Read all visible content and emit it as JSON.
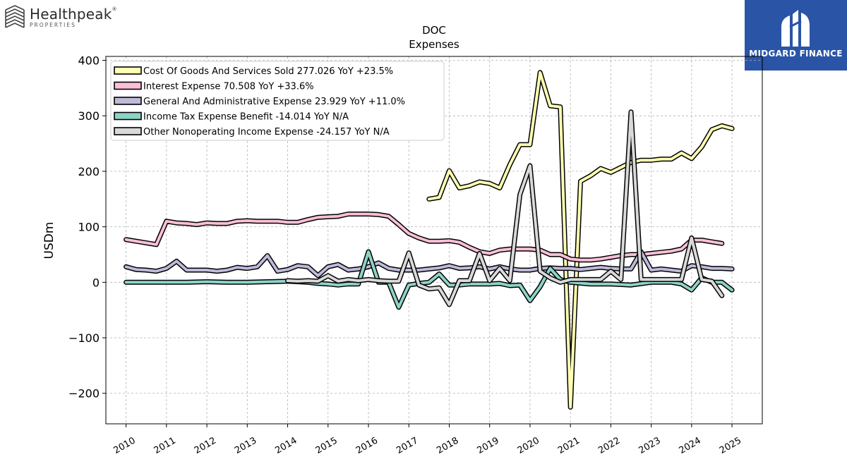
{
  "brand": {
    "name": "Healthpeak",
    "sub": "PROPERTIES",
    "mark": "®"
  },
  "badge": {
    "text": "MIDGARD FINANCE"
  },
  "chart_data": {
    "type": "line",
    "title": "DOC",
    "subtitle": "Expenses",
    "ylabel": "USDm",
    "xlabel": "",
    "ylim": [
      -255,
      407
    ],
    "xlim": [
      2009.5,
      2025.75
    ],
    "yticks": [
      -200,
      -100,
      0,
      100,
      200,
      300,
      400
    ],
    "ytick_labels": [
      "−200",
      "−100",
      "0",
      "100",
      "200",
      "300",
      "400"
    ],
    "xticks": [
      2010,
      2011,
      2012,
      2013,
      2014,
      2015,
      2016,
      2017,
      2018,
      2019,
      2020,
      2021,
      2022,
      2023,
      2024,
      2025
    ],
    "grid": true,
    "legend_position": "top-left",
    "series": [
      {
        "name": "Cost Of Goods And Services Sold",
        "legend_label": "Cost Of Goods And Services Sold  277.026 YoY +23.5%",
        "color": "#ffffb3",
        "points": [
          [
            2017.5,
            150
          ],
          [
            2017.75,
            153
          ],
          [
            2018.0,
            201
          ],
          [
            2018.25,
            170
          ],
          [
            2018.5,
            174
          ],
          [
            2018.75,
            181
          ],
          [
            2019.0,
            178
          ],
          [
            2019.25,
            170
          ],
          [
            2019.5,
            212
          ],
          [
            2019.75,
            248
          ],
          [
            2020.0,
            248
          ],
          [
            2020.25,
            378
          ],
          [
            2020.5,
            318
          ],
          [
            2020.75,
            316
          ],
          [
            2021.0,
            -225
          ],
          [
            2021.25,
            182
          ],
          [
            2021.5,
            192
          ],
          [
            2021.75,
            205
          ],
          [
            2022.0,
            198
          ],
          [
            2022.25,
            207
          ],
          [
            2022.5,
            216
          ],
          [
            2022.75,
            220
          ],
          [
            2023.0,
            220
          ],
          [
            2023.25,
            222
          ],
          [
            2023.5,
            222
          ],
          [
            2023.75,
            233
          ],
          [
            2024.0,
            223
          ],
          [
            2024.25,
            244
          ],
          [
            2024.5,
            275
          ],
          [
            2024.75,
            282
          ],
          [
            2025.0,
            277
          ]
        ]
      },
      {
        "name": "Interest Expense",
        "legend_label": "Interest Expense  70.508 YoY +33.6%",
        "color": "#fbbfd8",
        "points": [
          [
            2010.0,
            77
          ],
          [
            2010.25,
            74
          ],
          [
            2010.5,
            71
          ],
          [
            2010.75,
            68
          ],
          [
            2011.0,
            110
          ],
          [
            2011.25,
            107
          ],
          [
            2011.5,
            106
          ],
          [
            2011.75,
            104
          ],
          [
            2012.0,
            107
          ],
          [
            2012.25,
            106
          ],
          [
            2012.5,
            106
          ],
          [
            2012.75,
            110
          ],
          [
            2013.0,
            111
          ],
          [
            2013.25,
            110
          ],
          [
            2013.5,
            110
          ],
          [
            2013.75,
            110
          ],
          [
            2014.0,
            108
          ],
          [
            2014.25,
            108
          ],
          [
            2014.5,
            113
          ],
          [
            2014.75,
            117
          ],
          [
            2015.0,
            118
          ],
          [
            2015.25,
            119
          ],
          [
            2015.5,
            123
          ],
          [
            2015.75,
            123
          ],
          [
            2016.0,
            123
          ],
          [
            2016.25,
            122
          ],
          [
            2016.5,
            119
          ],
          [
            2016.75,
            104
          ],
          [
            2017.0,
            88
          ],
          [
            2017.25,
            80
          ],
          [
            2017.5,
            74
          ],
          [
            2017.75,
            74
          ],
          [
            2018.0,
            75
          ],
          [
            2018.25,
            72
          ],
          [
            2018.5,
            63
          ],
          [
            2018.75,
            55
          ],
          [
            2019.0,
            52
          ],
          [
            2019.25,
            58
          ],
          [
            2019.5,
            60
          ],
          [
            2019.75,
            60
          ],
          [
            2020.0,
            60
          ],
          [
            2020.25,
            58
          ],
          [
            2020.5,
            50
          ],
          [
            2020.75,
            50
          ],
          [
            2021.0,
            42
          ],
          [
            2021.25,
            40
          ],
          [
            2021.5,
            40
          ],
          [
            2021.75,
            42
          ],
          [
            2022.0,
            45
          ],
          [
            2022.25,
            48
          ],
          [
            2022.5,
            50
          ],
          [
            2022.75,
            50
          ],
          [
            2023.0,
            52
          ],
          [
            2023.25,
            54
          ],
          [
            2023.5,
            56
          ],
          [
            2023.75,
            60
          ],
          [
            2024.0,
            76
          ],
          [
            2024.25,
            76
          ],
          [
            2024.5,
            73
          ],
          [
            2024.75,
            70
          ]
        ]
      },
      {
        "name": "General And Administrative Expense",
        "legend_label": "General And Administrative Expense  23.929 YoY +11.0%",
        "color": "#bebada",
        "points": [
          [
            2010.0,
            28
          ],
          [
            2010.25,
            23
          ],
          [
            2010.5,
            22
          ],
          [
            2010.75,
            20
          ],
          [
            2011.0,
            25
          ],
          [
            2011.25,
            38
          ],
          [
            2011.5,
            22
          ],
          [
            2011.75,
            22
          ],
          [
            2012.0,
            22
          ],
          [
            2012.25,
            20
          ],
          [
            2012.5,
            22
          ],
          [
            2012.75,
            27
          ],
          [
            2013.0,
            25
          ],
          [
            2013.25,
            28
          ],
          [
            2013.5,
            48
          ],
          [
            2013.75,
            20
          ],
          [
            2014.0,
            23
          ],
          [
            2014.25,
            30
          ],
          [
            2014.5,
            28
          ],
          [
            2014.75,
            12
          ],
          [
            2015.0,
            28
          ],
          [
            2015.25,
            32
          ],
          [
            2015.5,
            22
          ],
          [
            2015.75,
            24
          ],
          [
            2016.0,
            28
          ],
          [
            2016.25,
            35
          ],
          [
            2016.5,
            25
          ],
          [
            2016.75,
            22
          ],
          [
            2017.0,
            22
          ],
          [
            2017.25,
            22
          ],
          [
            2017.5,
            24
          ],
          [
            2017.75,
            26
          ],
          [
            2018.0,
            30
          ],
          [
            2018.25,
            25
          ],
          [
            2018.5,
            26
          ],
          [
            2018.75,
            28
          ],
          [
            2019.0,
            24
          ],
          [
            2019.25,
            28
          ],
          [
            2019.5,
            24
          ],
          [
            2019.75,
            22
          ],
          [
            2020.0,
            22
          ],
          [
            2020.25,
            25
          ],
          [
            2020.5,
            26
          ],
          [
            2020.75,
            25
          ],
          [
            2021.0,
            25
          ],
          [
            2021.25,
            23
          ],
          [
            2021.5,
            25
          ],
          [
            2021.75,
            27
          ],
          [
            2022.0,
            25
          ],
          [
            2022.25,
            24
          ],
          [
            2022.5,
            24
          ],
          [
            2022.75,
            55
          ],
          [
            2023.0,
            22
          ],
          [
            2023.25,
            24
          ],
          [
            2023.5,
            22
          ],
          [
            2023.75,
            20
          ],
          [
            2024.0,
            30
          ],
          [
            2024.25,
            28
          ],
          [
            2024.5,
            25
          ],
          [
            2024.75,
            25
          ],
          [
            2025.0,
            24
          ]
        ]
      },
      {
        "name": "Income Tax Expense Benefit",
        "legend_label": "Income Tax Expense Benefit  -14.014 YoY N/A",
        "color": "#8dd3c7",
        "points": [
          [
            2010.0,
            0
          ],
          [
            2010.5,
            0
          ],
          [
            2011.0,
            0
          ],
          [
            2011.5,
            0
          ],
          [
            2012.0,
            1
          ],
          [
            2012.5,
            0
          ],
          [
            2013.0,
            0
          ],
          [
            2013.5,
            1
          ],
          [
            2014.0,
            2
          ],
          [
            2014.5,
            0
          ],
          [
            2014.75,
            -2
          ],
          [
            2015.0,
            -3
          ],
          [
            2015.25,
            -5
          ],
          [
            2015.5,
            -3
          ],
          [
            2015.75,
            -3
          ],
          [
            2016.0,
            55
          ],
          [
            2016.25,
            0
          ],
          [
            2016.5,
            0
          ],
          [
            2016.75,
            -45
          ],
          [
            2017.0,
            -5
          ],
          [
            2017.25,
            -2
          ],
          [
            2017.5,
            0
          ],
          [
            2017.75,
            15
          ],
          [
            2018.0,
            -5
          ],
          [
            2018.25,
            -5
          ],
          [
            2018.5,
            -3
          ],
          [
            2018.75,
            -3
          ],
          [
            2019.0,
            -3
          ],
          [
            2019.25,
            -2
          ],
          [
            2019.5,
            -6
          ],
          [
            2019.75,
            -5
          ],
          [
            2020.0,
            -33
          ],
          [
            2020.25,
            -8
          ],
          [
            2020.5,
            25
          ],
          [
            2020.75,
            5
          ],
          [
            2021.0,
            0
          ],
          [
            2021.5,
            -3
          ],
          [
            2022.0,
            -3
          ],
          [
            2022.5,
            -5
          ],
          [
            2023.0,
            0
          ],
          [
            2023.5,
            0
          ],
          [
            2023.75,
            -3
          ],
          [
            2024.0,
            -14
          ],
          [
            2024.25,
            8
          ],
          [
            2024.5,
            0
          ],
          [
            2024.75,
            0
          ],
          [
            2025.0,
            -14
          ]
        ]
      },
      {
        "name": "Other Nonoperating Income Expense",
        "legend_label": "Other Nonoperating Income Expense  -24.157 YoY N/A",
        "color": "#d9d9d9",
        "points": [
          [
            2014.0,
            3
          ],
          [
            2014.25,
            2
          ],
          [
            2014.5,
            3
          ],
          [
            2014.75,
            2
          ],
          [
            2015.0,
            12
          ],
          [
            2015.25,
            2
          ],
          [
            2015.5,
            5
          ],
          [
            2015.75,
            3
          ],
          [
            2016.0,
            5
          ],
          [
            2016.25,
            3
          ],
          [
            2016.5,
            2
          ],
          [
            2016.75,
            2
          ],
          [
            2017.0,
            53
          ],
          [
            2017.25,
            -5
          ],
          [
            2017.5,
            -12
          ],
          [
            2017.75,
            -10
          ],
          [
            2018.0,
            -40
          ],
          [
            2018.25,
            3
          ],
          [
            2018.5,
            3
          ],
          [
            2018.75,
            52
          ],
          [
            2019.0,
            3
          ],
          [
            2019.25,
            25
          ],
          [
            2019.5,
            3
          ],
          [
            2019.75,
            158
          ],
          [
            2020.0,
            210
          ],
          [
            2020.25,
            20
          ],
          [
            2020.5,
            8
          ],
          [
            2020.75,
            0
          ],
          [
            2021.0,
            5
          ],
          [
            2021.5,
            5
          ],
          [
            2021.75,
            5
          ],
          [
            2022.0,
            20
          ],
          [
            2022.25,
            5
          ],
          [
            2022.5,
            307
          ],
          [
            2022.75,
            5
          ],
          [
            2023.0,
            5
          ],
          [
            2023.5,
            5
          ],
          [
            2023.75,
            5
          ],
          [
            2024.0,
            80
          ],
          [
            2024.25,
            5
          ],
          [
            2024.5,
            2
          ],
          [
            2024.75,
            -24
          ]
        ]
      }
    ]
  }
}
